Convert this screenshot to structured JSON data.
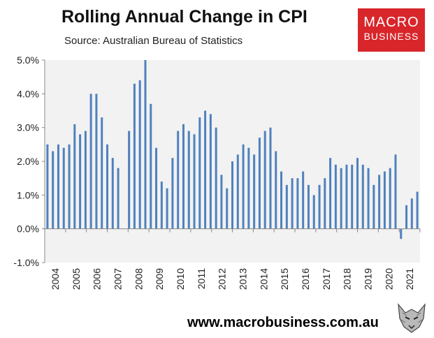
{
  "header": {
    "title": "Rolling Annual Change in CPI",
    "subtitle": "Source: Australian Bureau of Statistics"
  },
  "logo": {
    "line1": "MACRO",
    "line2": "BUSINESS"
  },
  "footer": {
    "url": "www.macrobusiness.com.au"
  },
  "colors": {
    "bar": "#4f81bd",
    "plot_bg": "#f2f2f2",
    "logo_bg": "#d8262b"
  },
  "chart_data": {
    "type": "bar",
    "title": "Rolling Annual Change in CPI",
    "subtitle": "Source: Australian Bureau of Statistics",
    "xlabel": "",
    "ylabel": "",
    "ylim": [
      -1.0,
      5.0
    ],
    "yticks": [
      "-1.0%",
      "0.0%",
      "1.0%",
      "2.0%",
      "3.0%",
      "4.0%",
      "5.0%"
    ],
    "year_labels": [
      "2004",
      "2005",
      "2006",
      "2007",
      "2008",
      "2009",
      "2010",
      "2011",
      "2012",
      "2013",
      "2014",
      "2015",
      "2016",
      "2017",
      "2018",
      "2019",
      "2020",
      "2021"
    ],
    "series": [
      {
        "name": "Rolling Annual Change in CPI",
        "values": [
          2.5,
          2.3,
          2.5,
          2.4,
          2.5,
          3.1,
          2.8,
          2.9,
          4.0,
          4.0,
          3.3,
          2.5,
          2.1,
          1.8,
          null,
          2.9,
          4.3,
          4.4,
          5.0,
          3.7,
          2.4,
          1.4,
          1.2,
          2.1,
          2.9,
          3.1,
          2.9,
          2.8,
          3.3,
          3.5,
          3.4,
          3.0,
          1.6,
          1.2,
          2.0,
          2.2,
          2.5,
          2.4,
          2.2,
          2.7,
          2.9,
          3.0,
          2.3,
          1.7,
          1.3,
          1.5,
          1.5,
          1.7,
          1.3,
          1.0,
          1.3,
          1.5,
          2.1,
          1.9,
          1.8,
          1.9,
          1.9,
          2.1,
          1.9,
          1.8,
          1.3,
          1.6,
          1.7,
          1.8,
          2.2,
          -0.3,
          0.7,
          0.9,
          1.1
        ]
      }
    ]
  }
}
